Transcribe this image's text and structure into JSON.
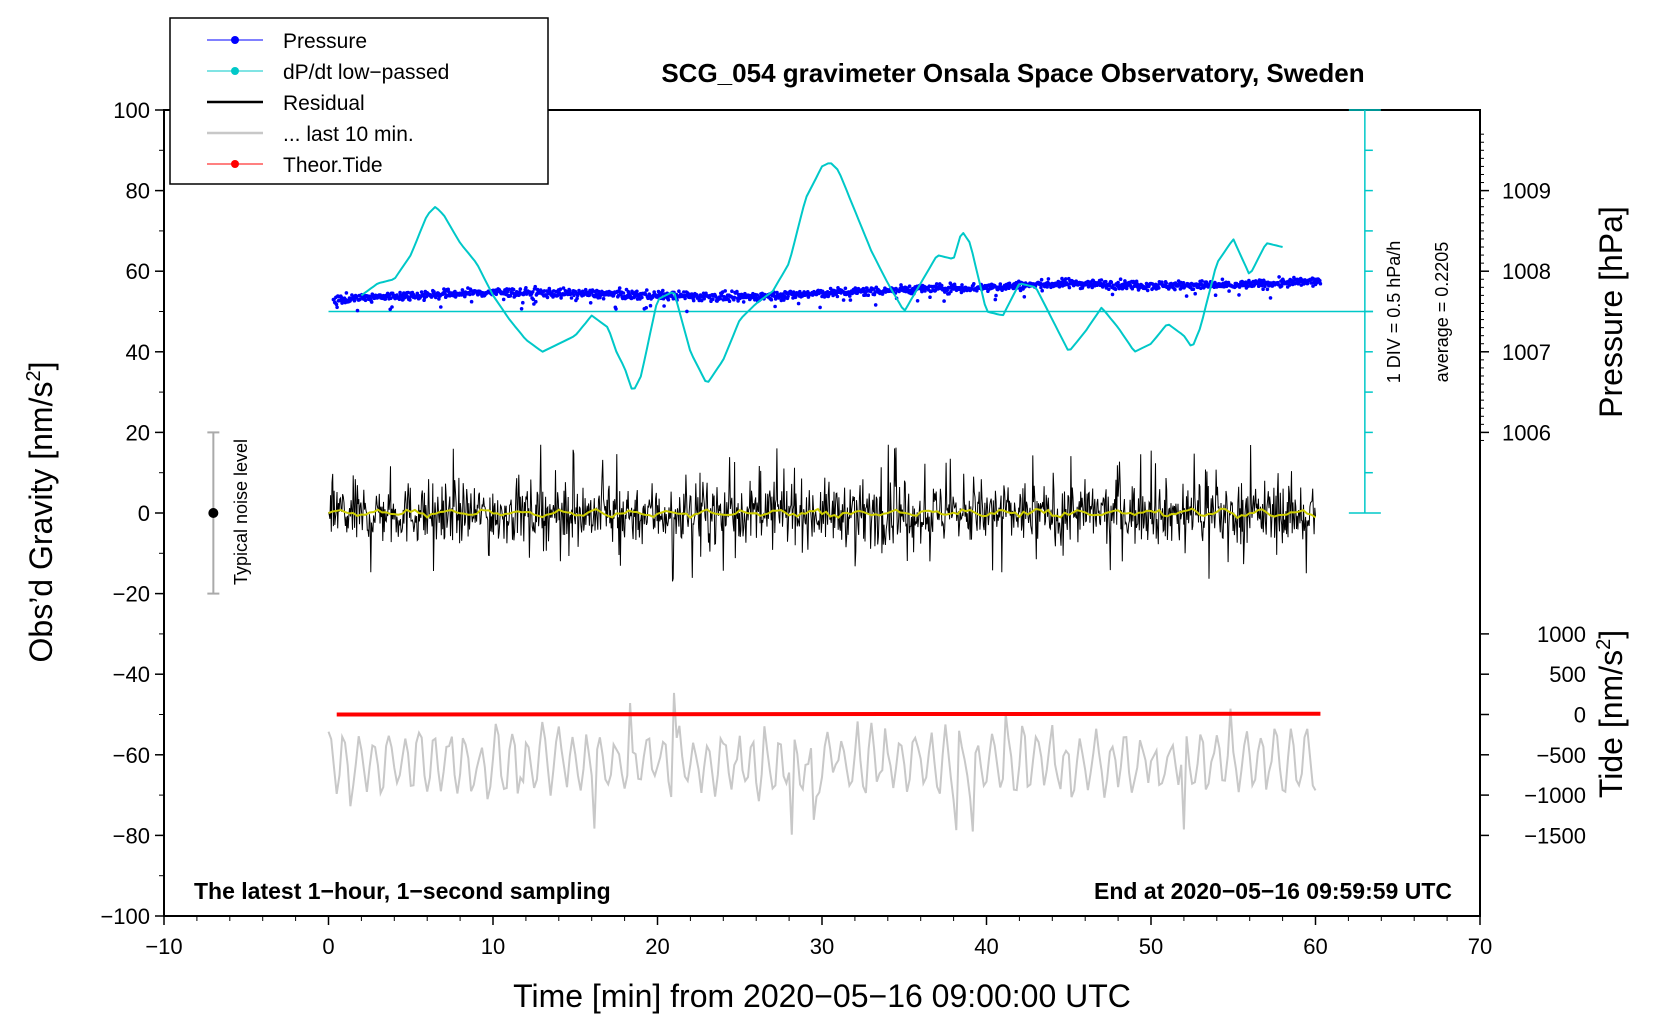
{
  "chart_data": {
    "type": "line",
    "title": "SCG_054 gravimeter Onsala Space Observatory, Sweden",
    "xlabel": "Time [min] from 2020−05−16 09:00:00 UTC",
    "ylabel_left": "Obs’d Gravity [nm/s",
    "ylabel_left_sup": "2",
    "ylabel_left_close": "]",
    "ylabel_right_pressure": "Pressure [hPa]",
    "ylabel_right_tide": "Tide [nm/s",
    "ylabel_right_tide_sup": "2",
    "ylabel_right_tide_close": "]",
    "xlim": [
      -10,
      70
    ],
    "ylim": [
      -100,
      100
    ],
    "x_ticks": [
      {
        "v": -10,
        "label": "−10"
      },
      {
        "v": 0,
        "label": "0"
      },
      {
        "v": 10,
        "label": "10"
      },
      {
        "v": 20,
        "label": "20"
      },
      {
        "v": 30,
        "label": "30"
      },
      {
        "v": 40,
        "label": "40"
      },
      {
        "v": 50,
        "label": "50"
      },
      {
        "v": 60,
        "label": "60"
      },
      {
        "v": 70,
        "label": "70"
      }
    ],
    "y_ticks": [
      {
        "v": 100,
        "label": "100"
      },
      {
        "v": 80,
        "label": "80"
      },
      {
        "v": 60,
        "label": "60"
      },
      {
        "v": 40,
        "label": "40"
      },
      {
        "v": 20,
        "label": "20"
      },
      {
        "v": 0,
        "label": "0"
      },
      {
        "v": -20,
        "label": "−20"
      },
      {
        "v": -40,
        "label": "−40"
      },
      {
        "v": -60,
        "label": "−60"
      },
      {
        "v": -80,
        "label": "−80"
      },
      {
        "v": -100,
        "label": "−100"
      }
    ],
    "pressure_axis": {
      "unit_per_gravity": 20,
      "ref_pressure": 1006,
      "ref_gravity": 20,
      "ticks": [
        {
          "v": 1009,
          "label": "1009"
        },
        {
          "v": 1008,
          "label": "1008"
        },
        {
          "v": 1007,
          "label": "1007"
        },
        {
          "v": 1006,
          "label": "1006"
        }
      ]
    },
    "tide_axis": {
      "ref_tide": 0,
      "ref_gravity": -50,
      "nm_per_gravity_unit": 50,
      "ticks": [
        {
          "v": 1000,
          "label": "1000"
        },
        {
          "v": 500,
          "label": "500"
        },
        {
          "v": 0,
          "label": "0"
        },
        {
          "v": -500,
          "label": "−500"
        },
        {
          "v": -1000,
          "label": "−1000"
        },
        {
          "v": -1500,
          "label": "−1500"
        }
      ]
    },
    "series": [
      {
        "name": "Pressure",
        "color": "#0000ff",
        "style": "dots",
        "x": [
          0.3,
          5,
          10,
          15,
          20,
          25,
          30,
          35,
          40,
          45,
          50,
          55,
          60.3
        ],
        "y": [
          53,
          54,
          54.8,
          54.5,
          54,
          53.5,
          54.5,
          55.5,
          56,
          57,
          56.5,
          56.5,
          57.5
        ]
      },
      {
        "name": "dP/dt low−passed",
        "color": "#00c8c8",
        "style": "line",
        "x": [
          2,
          3,
          4,
          5,
          6,
          6.5,
          7,
          8,
          9,
          10,
          11,
          12,
          13,
          14,
          15,
          16,
          17,
          17.5,
          18,
          18.5,
          19,
          20,
          21,
          22,
          23,
          24,
          25,
          26,
          27,
          28,
          29,
          30,
          30.5,
          31,
          32,
          33,
          34,
          35,
          36,
          37,
          38,
          38.5,
          39,
          40,
          41,
          42,
          43,
          44,
          45,
          46,
          47,
          48,
          49,
          50,
          51,
          52,
          52.5,
          53,
          54,
          55,
          56,
          57,
          58
        ],
        "y": [
          54,
          57,
          58,
          64,
          74,
          76,
          74,
          67,
          62,
          54,
          48,
          43,
          40,
          42,
          44,
          49,
          46,
          40,
          36,
          30,
          34,
          53,
          55,
          40,
          32,
          38,
          48,
          52,
          55,
          62,
          78,
          86,
          87,
          85,
          75,
          65,
          57,
          50,
          57,
          64,
          63,
          70,
          67,
          50,
          49,
          57,
          56,
          48,
          40,
          45,
          51,
          46,
          40,
          42,
          47,
          44,
          41,
          46,
          62,
          68,
          59,
          67,
          66
        ]
      },
      {
        "name": "Theor.Tide",
        "color": "#ff0000",
        "style": "line",
        "x": [
          0.5,
          60.3
        ],
        "y": [
          -50,
          -49.8
        ]
      }
    ],
    "residual": {
      "name": "Residual",
      "color": "#000000",
      "x_start": 0,
      "x_end": 60,
      "center": 0,
      "amplitude_range": [
        -19,
        17
      ]
    },
    "residual_smooth": {
      "color": "#cccc00",
      "center": 0
    },
    "last10": {
      "name": "... last 10 min.",
      "color": "#c8c8c8",
      "x_start": 0,
      "x_end": 60,
      "center": -62,
      "amplitude_range": [
        -80,
        -42
      ]
    },
    "pressure_average_line": {
      "color": "#00c8c8",
      "y": 50,
      "x_start": 0,
      "x_end": 63.5
    },
    "dpdt_scale": {
      "x": 63,
      "y_top": 100,
      "y_bottom": 0,
      "divisions": 10,
      "color": "#00c8c8"
    },
    "noise_bar": {
      "x": -7,
      "y": 0,
      "low": -20,
      "high": 20
    },
    "legend_position": "top-left"
  },
  "legend": {
    "pressure": "Pressure",
    "dpdt": "dP/dt low−passed",
    "residual": "Residual",
    "last10": "... last 10 min.",
    "tide": "Theor.Tide"
  },
  "annotations": {
    "noise": "Typical noise level",
    "div": "1 DIV = 0.5 hPa/h",
    "average": "average = 0.2205",
    "bottom_left": "The latest 1−hour, 1−second sampling",
    "bottom_right": "End at 2020−05−16 09:59:59 UTC"
  }
}
